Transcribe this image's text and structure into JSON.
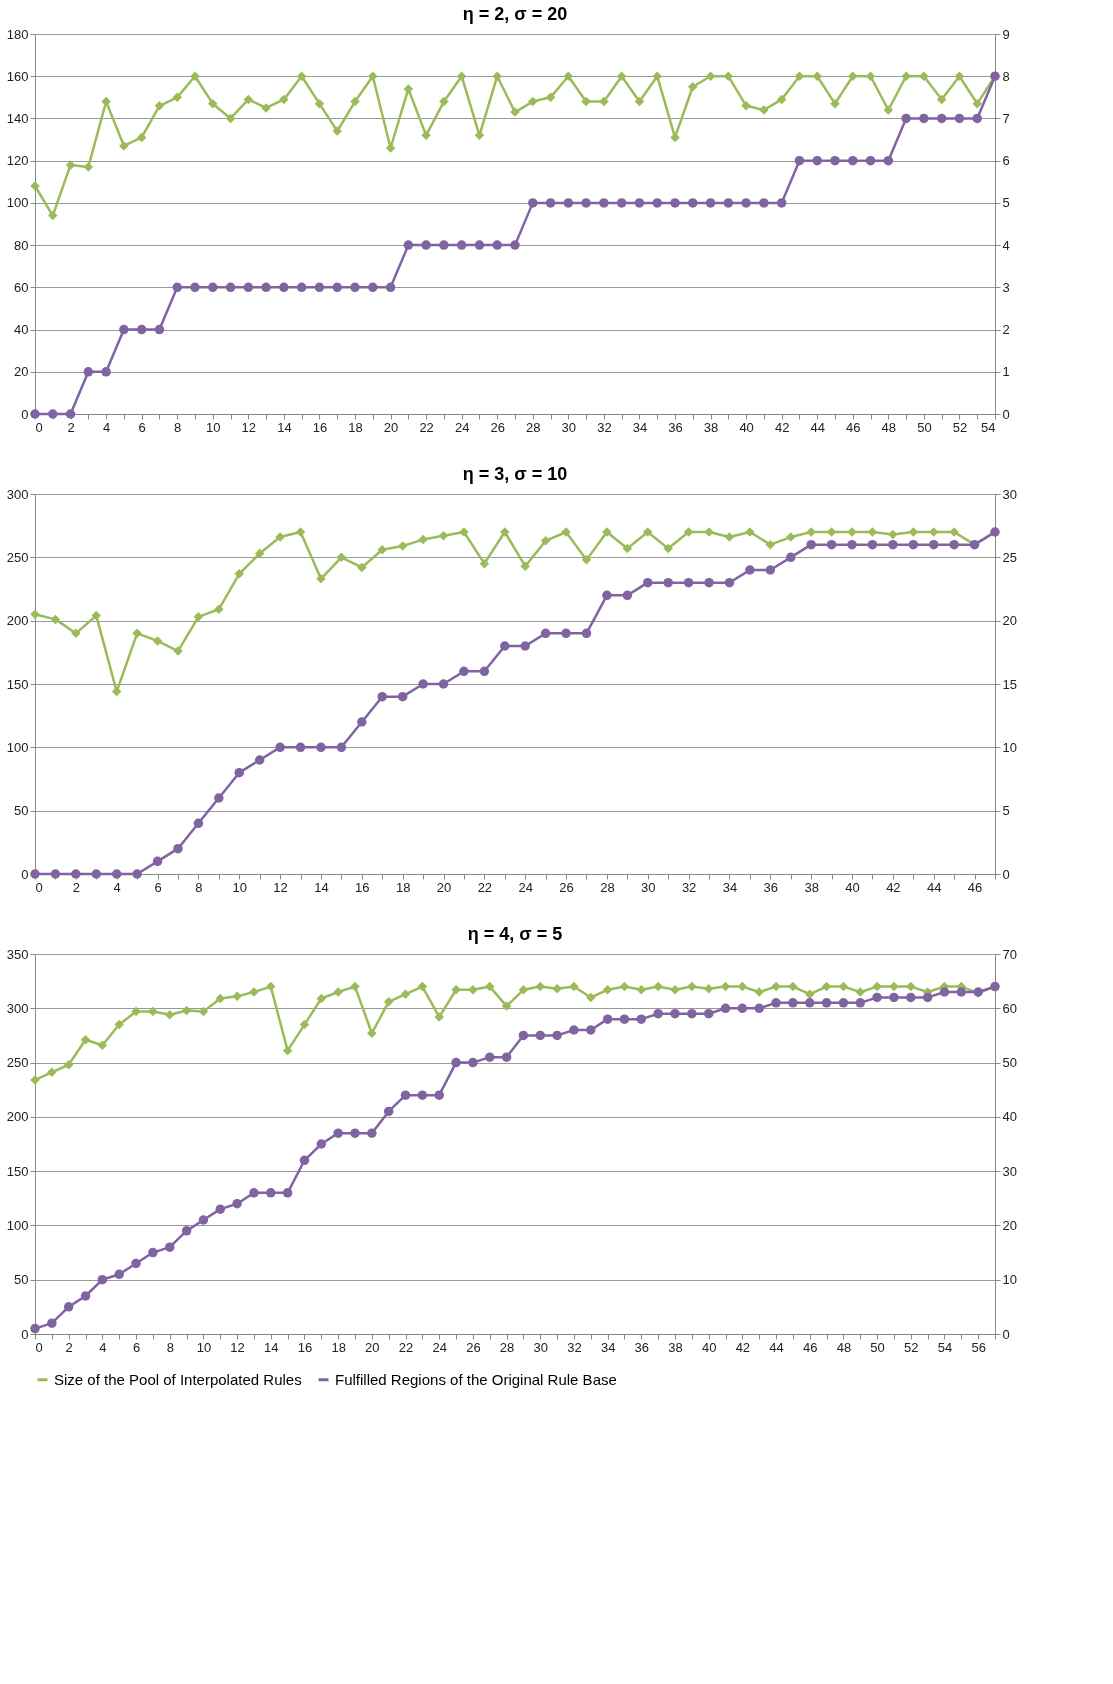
{
  "chart_data": [
    {
      "type": "line",
      "title": "η = 2, σ = 20",
      "grid": "y",
      "legend": false,
      "line_style": "solid",
      "x": [
        0,
        1,
        2,
        3,
        4,
        5,
        6,
        7,
        8,
        9,
        10,
        11,
        12,
        13,
        14,
        15,
        16,
        17,
        18,
        19,
        20,
        21,
        22,
        23,
        24,
        25,
        26,
        27,
        28,
        29,
        30,
        31,
        32,
        33,
        34,
        35,
        36,
        37,
        38,
        39,
        40,
        41,
        42,
        43,
        44,
        45,
        46,
        47,
        48,
        49,
        50,
        51,
        52,
        53,
        54
      ],
      "xlim": [
        0,
        54
      ],
      "xticks": [
        0,
        {
          "value": 1,
          "label": null
        },
        2,
        {
          "value": 3,
          "label": null
        },
        4,
        {
          "value": 5,
          "label": null
        },
        6,
        {
          "value": 7,
          "label": null
        },
        8,
        {
          "value": 9,
          "label": null
        },
        10,
        {
          "value": 11,
          "label": null
        },
        12,
        {
          "value": 13,
          "label": null
        },
        14,
        {
          "value": 15,
          "label": null
        },
        16,
        {
          "value": 17,
          "label": null
        },
        18,
        {
          "value": 19,
          "label": null
        },
        20,
        {
          "value": 21,
          "label": null
        },
        22,
        {
          "value": 23,
          "label": null
        },
        24,
        {
          "value": 25,
          "label": null
        },
        26,
        {
          "value": 27,
          "label": null
        },
        28,
        {
          "value": 29,
          "label": null
        },
        30,
        {
          "value": 31,
          "label": null
        },
        32,
        {
          "value": 33,
          "label": null
        },
        34,
        {
          "value": 35,
          "label": null
        },
        36,
        {
          "value": 37,
          "label": null
        },
        38,
        {
          "value": 39,
          "label": null
        },
        40,
        {
          "value": 41,
          "label": null
        },
        42,
        {
          "value": 43,
          "label": null
        },
        44,
        {
          "value": 45,
          "label": null
        },
        46,
        {
          "value": 47,
          "label": null
        },
        48,
        {
          "value": 49,
          "label": null
        },
        50,
        {
          "value": 51,
          "label": null
        },
        52,
        {
          "value": 53,
          "label": null
        },
        54
      ],
      "ylim": [
        0,
        180
      ],
      "yticks": [
        0,
        20,
        40,
        60,
        80,
        100,
        120,
        140,
        160,
        180
      ],
      "y2lim": [
        0,
        9
      ],
      "y2ticks": [
        0,
        1,
        2,
        3,
        4,
        5,
        6,
        7,
        8,
        9
      ],
      "series": [
        {
          "color": "#9bbb59",
          "marker": "diamond",
          "values": [
            108,
            94,
            118,
            117,
            148,
            127,
            131,
            146,
            150,
            160,
            147,
            140,
            149,
            145,
            149,
            160,
            147,
            134,
            148,
            160,
            126,
            154,
            132,
            148,
            160,
            132,
            160,
            143,
            148,
            150,
            160,
            148,
            148,
            160,
            148,
            160,
            131,
            155,
            160,
            160,
            146,
            144,
            149,
            160,
            160,
            147,
            160,
            160,
            144,
            160,
            160,
            149,
            160,
            147,
            160
          ]
        },
        {
          "color": "#8064a2",
          "marker": "circle",
          "axis": "y2",
          "values": [
            0,
            0,
            0,
            1,
            1,
            2,
            2,
            2,
            3,
            3,
            3,
            3,
            3,
            3,
            3,
            3,
            3,
            3,
            3,
            3,
            3,
            4,
            4,
            4,
            4,
            4,
            4,
            4,
            5,
            5,
            5,
            5,
            5,
            5,
            5,
            5,
            5,
            5,
            5,
            5,
            5,
            5,
            5,
            6,
            6,
            6,
            6,
            6,
            6,
            7,
            7,
            7,
            7,
            7,
            8
          ]
        }
      ]
    },
    {
      "type": "line",
      "title": "η = 3, σ = 10",
      "grid": "y",
      "legend": false,
      "line_style": "solid",
      "x": [
        0,
        1,
        2,
        3,
        4,
        5,
        6,
        7,
        8,
        9,
        10,
        11,
        12,
        13,
        14,
        15,
        16,
        17,
        18,
        19,
        20,
        21,
        22,
        23,
        24,
        25,
        26,
        27,
        28,
        29,
        30,
        31,
        32,
        33,
        34,
        35,
        36,
        37,
        38,
        39,
        40,
        41,
        42,
        43,
        44,
        45,
        46,
        47
      ],
      "xlim": [
        0,
        47
      ],
      "xticks": [
        0,
        {
          "value": 1,
          "label": null
        },
        2,
        {
          "value": 3,
          "label": null
        },
        4,
        {
          "value": 5,
          "label": null
        },
        6,
        {
          "value": 7,
          "label": null
        },
        8,
        {
          "value": 9,
          "label": null
        },
        10,
        {
          "value": 11,
          "label": null
        },
        12,
        {
          "value": 13,
          "label": null
        },
        14,
        {
          "value": 15,
          "label": null
        },
        16,
        {
          "value": 17,
          "label": null
        },
        18,
        {
          "value": 19,
          "label": null
        },
        20,
        {
          "value": 21,
          "label": null
        },
        22,
        {
          "value": 23,
          "label": null
        },
        24,
        {
          "value": 25,
          "label": null
        },
        26,
        {
          "value": 27,
          "label": null
        },
        28,
        {
          "value": 29,
          "label": null
        },
        30,
        {
          "value": 31,
          "label": null
        },
        32,
        {
          "value": 33,
          "label": null
        },
        34,
        {
          "value": 35,
          "label": null
        },
        36,
        {
          "value": 37,
          "label": null
        },
        38,
        {
          "value": 39,
          "label": null
        },
        40,
        {
          "value": 41,
          "label": null
        },
        42,
        {
          "value": 43,
          "label": null
        },
        44,
        {
          "value": 45,
          "label": null
        },
        46,
        {
          "value": 47,
          "label": null
        }
      ],
      "ylim": [
        0,
        300
      ],
      "yticks": [
        0,
        50,
        100,
        150,
        200,
        250,
        300
      ],
      "y2lim": [
        0,
        30
      ],
      "y2ticks": [
        0,
        5,
        10,
        15,
        20,
        25,
        30
      ],
      "series": [
        {
          "color": "#9bbb59",
          "marker": "diamond",
          "values": [
            205,
            201,
            190,
            204,
            144,
            190,
            184,
            176,
            203,
            209,
            237,
            253,
            266,
            270,
            233,
            250,
            242,
            256,
            259,
            264,
            267,
            270,
            245,
            270,
            243,
            263,
            270,
            248,
            270,
            257,
            270,
            257,
            270,
            270,
            266,
            270,
            260,
            266,
            270,
            270,
            270,
            270,
            268,
            270,
            270,
            270,
            260,
            270
          ]
        },
        {
          "color": "#8064a2",
          "marker": "circle",
          "axis": "y2",
          "values": [
            0,
            0,
            0,
            0,
            0,
            0,
            1,
            2,
            4,
            6,
            8,
            9,
            10,
            10,
            10,
            10,
            12,
            14,
            14,
            15,
            15,
            16,
            16,
            18,
            18,
            19,
            19,
            19,
            22,
            22,
            23,
            23,
            23,
            23,
            23,
            24,
            24,
            25,
            26,
            26,
            26,
            26,
            26,
            26,
            26,
            26,
            26,
            27
          ]
        }
      ]
    },
    {
      "type": "line",
      "title": "η = 4, σ = 5",
      "grid": "y",
      "legend": "bottom",
      "line_style": "solid",
      "x": [
        0,
        1,
        2,
        3,
        4,
        5,
        6,
        7,
        8,
        9,
        10,
        11,
        12,
        13,
        14,
        15,
        16,
        17,
        18,
        19,
        20,
        21,
        22,
        23,
        24,
        25,
        26,
        27,
        28,
        29,
        30,
        31,
        32,
        33,
        34,
        35,
        36,
        37,
        38,
        39,
        40,
        41,
        42,
        43,
        44,
        45,
        46,
        47,
        48,
        49,
        50,
        51,
        52,
        53,
        54,
        55,
        56,
        57
      ],
      "xlim": [
        0,
        57
      ],
      "xticks": [
        0,
        {
          "value": 1,
          "label": null
        },
        2,
        {
          "value": 3,
          "label": null
        },
        4,
        {
          "value": 5,
          "label": null
        },
        6,
        {
          "value": 7,
          "label": null
        },
        8,
        {
          "value": 9,
          "label": null
        },
        10,
        {
          "value": 11,
          "label": null
        },
        12,
        {
          "value": 13,
          "label": null
        },
        14,
        {
          "value": 15,
          "label": null
        },
        16,
        {
          "value": 17,
          "label": null
        },
        18,
        {
          "value": 19,
          "label": null
        },
        20,
        {
          "value": 21,
          "label": null
        },
        22,
        {
          "value": 23,
          "label": null
        },
        24,
        {
          "value": 25,
          "label": null
        },
        26,
        {
          "value": 27,
          "label": null
        },
        28,
        {
          "value": 29,
          "label": null
        },
        30,
        {
          "value": 31,
          "label": null
        },
        32,
        {
          "value": 33,
          "label": null
        },
        34,
        {
          "value": 35,
          "label": null
        },
        36,
        {
          "value": 37,
          "label": null
        },
        38,
        {
          "value": 39,
          "label": null
        },
        40,
        {
          "value": 41,
          "label": null
        },
        42,
        {
          "value": 43,
          "label": null
        },
        44,
        {
          "value": 45,
          "label": null
        },
        46,
        {
          "value": 47,
          "label": null
        },
        48,
        {
          "value": 49,
          "label": null
        },
        50,
        {
          "value": 51,
          "label": null
        },
        52,
        {
          "value": 53,
          "label": null
        },
        54,
        {
          "value": 55,
          "label": null
        },
        56,
        {
          "value": 57,
          "label": null
        }
      ],
      "ylim": [
        0,
        350
      ],
      "yticks": [
        0,
        50,
        100,
        150,
        200,
        250,
        300,
        350
      ],
      "y2lim": [
        0,
        70
      ],
      "y2ticks": [
        0,
        10,
        20,
        30,
        40,
        50,
        60,
        70
      ],
      "series": [
        {
          "name": "Size of the Pool of Interpolated Rules",
          "color": "#9bbb59",
          "marker": "diamond",
          "values": [
            234,
            241,
            248,
            271,
            266,
            285,
            297,
            297,
            294,
            298,
            297,
            309,
            311,
            315,
            320,
            261,
            285,
            309,
            315,
            320,
            277,
            306,
            313,
            320,
            292,
            317,
            317,
            320,
            302,
            317,
            320,
            318,
            320,
            310,
            317,
            320,
            317,
            320,
            317,
            320,
            318,
            320,
            320,
            315,
            320,
            320,
            313,
            320,
            320,
            315,
            320,
            320,
            320,
            315,
            320,
            320,
            314,
            320
          ]
        },
        {
          "name": "Fulfilled Regions of the Original Rule Base",
          "color": "#8064a2",
          "marker": "circle",
          "axis": "y2",
          "values": [
            1,
            2,
            5,
            7,
            10,
            11,
            13,
            15,
            16,
            19,
            21,
            23,
            24,
            26,
            26,
            26,
            32,
            35,
            37,
            37,
            37,
            41,
            44,
            44,
            44,
            50,
            50,
            51,
            51,
            55,
            55,
            55,
            56,
            56,
            58,
            58,
            58,
            59,
            59,
            59,
            59,
            60,
            60,
            60,
            61,
            61,
            61,
            61,
            61,
            61,
            62,
            62,
            62,
            62,
            63,
            63,
            63,
            64
          ]
        }
      ]
    }
  ]
}
